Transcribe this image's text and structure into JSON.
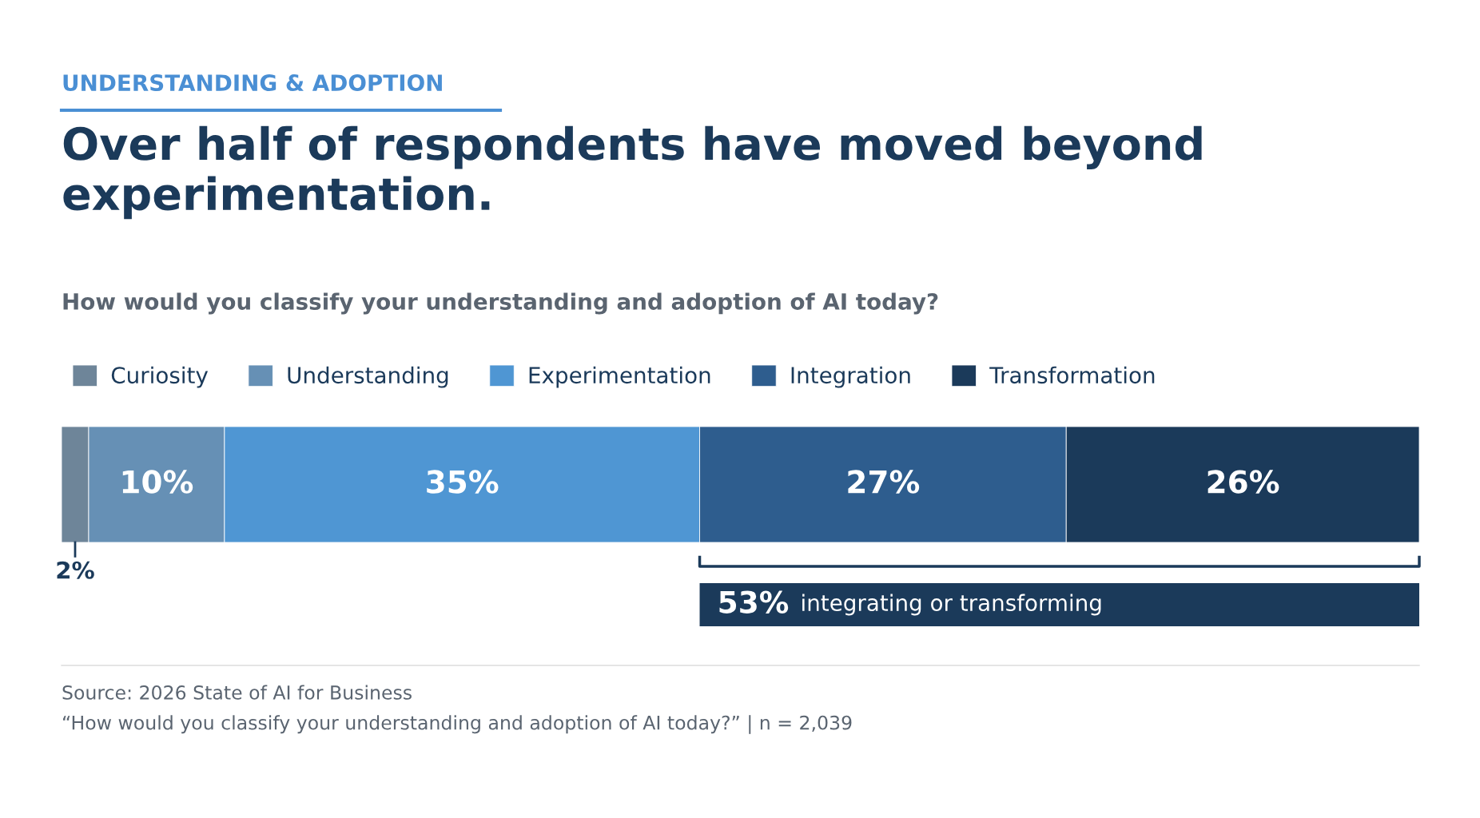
{
  "chart_data": {
    "type": "bar",
    "orientation": "horizontal",
    "stacked": true,
    "title": "Over half of respondents have moved beyond experimentation.",
    "subtitle": "How would you classify your understanding and adoption of AI today?",
    "categories": [
      null
    ],
    "series": [
      {
        "name": "Curiosity",
        "color": "#6e8599",
        "values": [
          2
        ],
        "value_labels": [
          "2%"
        ]
      },
      {
        "name": "Understanding",
        "color": "#6690b5",
        "values": [
          10
        ],
        "value_labels": [
          "10%"
        ]
      },
      {
        "name": "Experimentation",
        "color": "#4f96d3",
        "values": [
          35
        ],
        "value_labels": [
          "35%"
        ]
      },
      {
        "name": "Integration",
        "color": "#2e5d8e",
        "values": [
          27
        ],
        "value_labels": [
          "27%"
        ]
      },
      {
        "name": "Transformation",
        "color": "#1b3a5a",
        "values": [
          26
        ],
        "value_labels": [
          "26%"
        ]
      }
    ],
    "legend": "top left",
    "annotations": [
      "UNDERSTANDING & ADOPTION",
      "53% integrating or transforming",
      "Source: 2026 State of AI for Business",
      "“How would you classify your understanding and adoption of AI today?” | n = 2,039"
    ]
  }
}
